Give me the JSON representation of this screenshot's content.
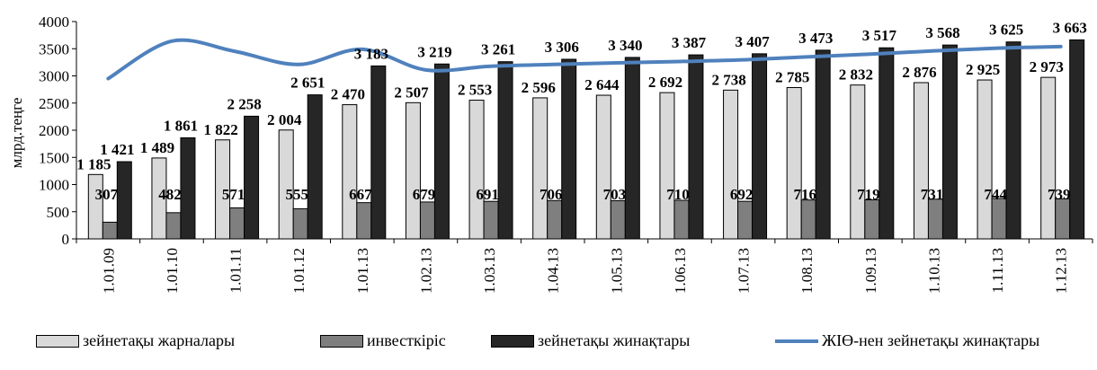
{
  "chart_data": {
    "type": "bar",
    "ylabel": "млрд.теңге",
    "ylim": [
      0,
      4000
    ],
    "yticks": [
      0,
      500,
      1000,
      1500,
      2000,
      2500,
      3000,
      3500,
      4000
    ],
    "categories": [
      "1.01.09",
      "1.01.10",
      "1.01.11",
      "1.01.12",
      "1.01.13",
      "1.02.13",
      "1.03.13",
      "1.04.13",
      "1.05.13",
      "1.06.13",
      "1.07.13",
      "1.08.13",
      "1.09.13",
      "1.10.13",
      "1.11.13",
      "1.12.13"
    ],
    "series": [
      {
        "name": "зейнетақы жарналары",
        "kind": "bar",
        "color": "#d9d9d9",
        "values": [
          1185,
          1489,
          1822,
          2004,
          2470,
          2507,
          2553,
          2596,
          2644,
          2692,
          2738,
          2785,
          2832,
          2876,
          2925,
          2973
        ],
        "labels": [
          "1 185",
          "1 489",
          "1 822",
          "2 004",
          "2 470",
          "2 507",
          "2 553",
          "2 596",
          "2 644",
          "2 692",
          "2 738",
          "2 785",
          "2 832",
          "2 876",
          "2 925",
          "2 973"
        ]
      },
      {
        "name": "инвесткіріс",
        "kind": "bar",
        "color": "#7f7f7f",
        "values": [
          307,
          482,
          571,
          555,
          667,
          679,
          691,
          706,
          703,
          710,
          692,
          716,
          719,
          731,
          744,
          739
        ],
        "labels": [
          "307",
          "482",
          "571",
          "555",
          "667",
          "679",
          "691",
          "706",
          "703",
          "710",
          "692",
          "716",
          "719",
          "731",
          "744",
          "739"
        ]
      },
      {
        "name": "зейнетақы жинақтары",
        "kind": "bar",
        "color": "#262626",
        "values": [
          1421,
          1861,
          2258,
          2651,
          3183,
          3219,
          3261,
          3306,
          3340,
          3387,
          3407,
          3473,
          3517,
          3568,
          3625,
          3663
        ],
        "labels": [
          "1 421",
          "1 861",
          "2 258",
          "2 651",
          "3 183",
          "3 219",
          "3 261",
          "3 306",
          "3 340",
          "3 387",
          "3 407",
          "3 473",
          "3 517",
          "3 568",
          "3 625",
          "3 663"
        ]
      },
      {
        "name": "ЖІӨ-нен зейнетақы жинақтары",
        "kind": "line",
        "color": "#4f81bd",
        "values": [
          2950,
          3640,
          3450,
          3210,
          3490,
          3110,
          3175,
          3210,
          3240,
          3265,
          3295,
          3350,
          3400,
          3460,
          3510,
          3540
        ]
      }
    ],
    "grid": false,
    "legend_position": "bottom"
  }
}
